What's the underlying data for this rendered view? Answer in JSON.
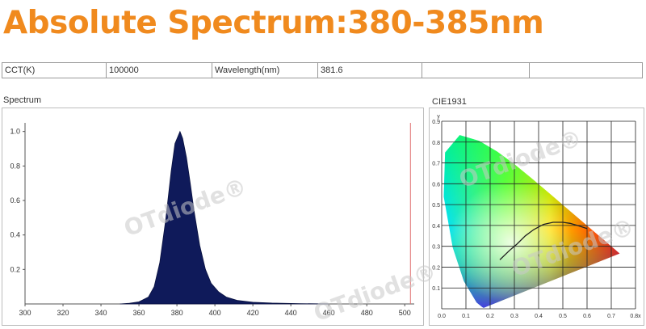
{
  "header": {
    "title": "Absolute Spectrum:380-385nm"
  },
  "info_table": {
    "cct_label": "CCT(K)",
    "cct_value": "100000",
    "wavelength_label": "Wavelength(nm)",
    "wavelength_value": "381.6"
  },
  "panels": {
    "spectrum_label": "Spectrum",
    "cie_label": "CIE1931"
  },
  "watermark": "OTdiode®",
  "colors": {
    "title": "#f08a1e",
    "spectrum_fill": "#0f1a5a",
    "marker_line": "#e07070"
  },
  "chart_data": [
    {
      "type": "area",
      "title": "Spectrum",
      "xlim": [
        300,
        505
      ],
      "ylim": [
        0,
        1.05
      ],
      "x_ticks": [
        300,
        320,
        340,
        360,
        380,
        400,
        420,
        440,
        460,
        480,
        500
      ],
      "y_ticks": [
        0.2,
        0.4,
        0.6,
        0.8,
        1.0
      ],
      "x": [
        350,
        355,
        360,
        365,
        368,
        371,
        374,
        377,
        379,
        381.6,
        383,
        385,
        387,
        389,
        392,
        395,
        398,
        402,
        406,
        412,
        420,
        430,
        445,
        460
      ],
      "y": [
        0.0,
        0.004,
        0.012,
        0.04,
        0.1,
        0.24,
        0.48,
        0.77,
        0.93,
        1.0,
        0.96,
        0.85,
        0.7,
        0.54,
        0.34,
        0.2,
        0.12,
        0.07,
        0.04,
        0.02,
        0.01,
        0.005,
        0.002,
        0.0
      ],
      "marker_x": 503
    },
    {
      "type": "scatter",
      "title": "CIE1931",
      "xlim": [
        0,
        0.8
      ],
      "ylim": [
        0,
        0.9
      ],
      "x_ticks": [
        "0.0",
        "0.1",
        "0.2",
        "0.3",
        "0.4",
        "0.5",
        "0.6",
        "0.7",
        "0.8x"
      ],
      "y_ticks": [
        "0.1",
        "0.2",
        "0.3",
        "0.4",
        "0.5",
        "0.6",
        "0.7",
        "0.8",
        "0.9"
      ],
      "y_axis_label": "y",
      "locus_x": [
        0.1741,
        0.1738,
        0.1721,
        0.1666,
        0.144,
        0.0913,
        0.0454,
        0.0082,
        0.0139,
        0.0743,
        0.1547,
        0.2296,
        0.3016,
        0.3731,
        0.4441,
        0.5125,
        0.5752,
        0.627,
        0.6658,
        0.6915,
        0.7079,
        0.7347
      ],
      "locus_y": [
        0.005,
        0.0049,
        0.0048,
        0.0089,
        0.0297,
        0.1327,
        0.295,
        0.5384,
        0.7502,
        0.8338,
        0.8059,
        0.7543,
        0.6923,
        0.6245,
        0.5547,
        0.4866,
        0.4242,
        0.3725,
        0.334,
        0.3083,
        0.292,
        0.2653
      ],
      "planckian_x": [
        0.24,
        0.28,
        0.31,
        0.345,
        0.38,
        0.42,
        0.46,
        0.5,
        0.53,
        0.56,
        0.6
      ],
      "planckian_y": [
        0.235,
        0.28,
        0.31,
        0.35,
        0.38,
        0.405,
        0.415,
        0.415,
        0.41,
        0.4,
        0.385
      ]
    }
  ]
}
